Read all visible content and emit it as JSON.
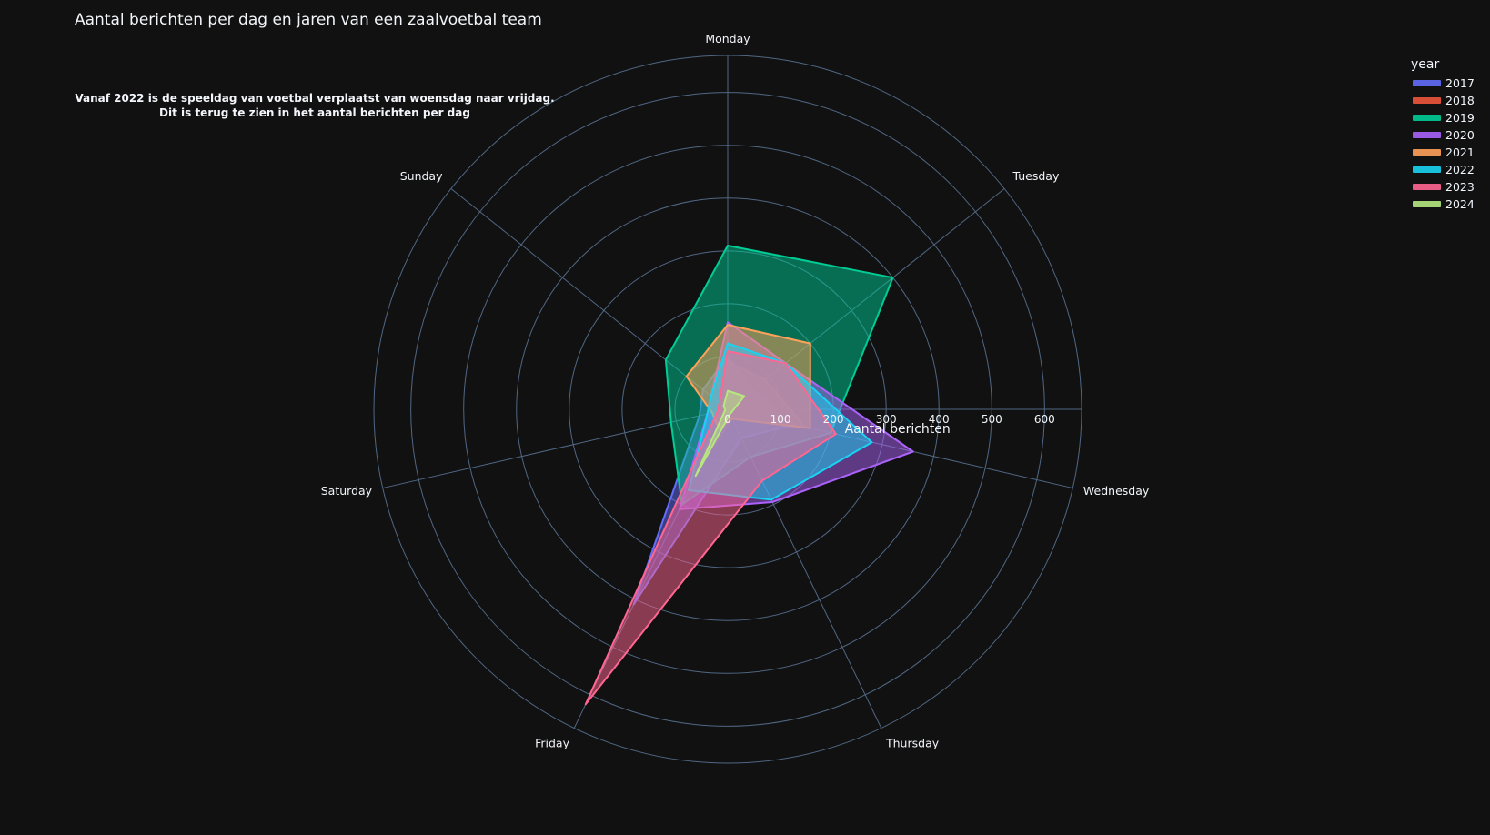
{
  "title": "Aantal berichten per dag en jaren van een zaalvoetbal team",
  "annotation": {
    "line1": "Vanaf 2022 is de speeldag van voetbal verplaatst van woensdag naar vrijdag.",
    "line2": "Dit is terug te zien in het aantal berichten per dag"
  },
  "legend": {
    "title": "year",
    "items": [
      {
        "label": "2017",
        "color": "#636efa"
      },
      {
        "label": "2018",
        "color": "#ef553b"
      },
      {
        "label": "2019",
        "color": "#00cc96"
      },
      {
        "label": "2020",
        "color": "#ab63fa"
      },
      {
        "label": "2021",
        "color": "#ffa15a"
      },
      {
        "label": "2022",
        "color": "#19d3f3"
      },
      {
        "label": "2023",
        "color": "#ff6692"
      },
      {
        "label": "2024",
        "color": "#b6e880"
      }
    ]
  },
  "chart_data": {
    "type": "radar",
    "title": "Aantal berichten per dag en jaren van een zaalvoetbal team",
    "radial_axis_title": "Aantal berichten",
    "radial_ticks": [
      "0",
      "100",
      "200",
      "300",
      "400",
      "500",
      "600"
    ],
    "rlim": [
      0,
      670
    ],
    "grid": true,
    "legend_placement": "top-right",
    "categories": [
      "Monday",
      "Tuesday",
      "Wednesday",
      "Thursday",
      "Friday",
      "Saturday",
      "Sunday"
    ],
    "series": [
      {
        "name": "2017",
        "color": "#636efa",
        "values": [
          100,
          60,
          130,
          60,
          410,
          55,
          60
        ]
      },
      {
        "name": "2018",
        "color": "#ef553b",
        "values": [
          90,
          90,
          150,
          20,
          120,
          20,
          20
        ]
      },
      {
        "name": "2019",
        "color": "#00cc96",
        "values": [
          310,
          400,
          200,
          100,
          200,
          110,
          150
        ]
      },
      {
        "name": "2020",
        "color": "#ab63fa",
        "values": [
          165,
          140,
          360,
          195,
          210,
          40,
          40
        ]
      },
      {
        "name": "2021",
        "color": "#ffa15a",
        "values": [
          160,
          200,
          160,
          20,
          40,
          30,
          100
        ]
      },
      {
        "name": "2022",
        "color": "#19d3f3",
        "values": [
          125,
          140,
          280,
          190,
          170,
          40,
          40
        ]
      },
      {
        "name": "2023",
        "color": "#ff6692",
        "values": [
          110,
          140,
          210,
          150,
          620,
          20,
          20
        ]
      },
      {
        "name": "2024",
        "color": "#b6e880",
        "values": [
          35,
          40,
          10,
          10,
          140,
          5,
          10
        ]
      }
    ]
  }
}
